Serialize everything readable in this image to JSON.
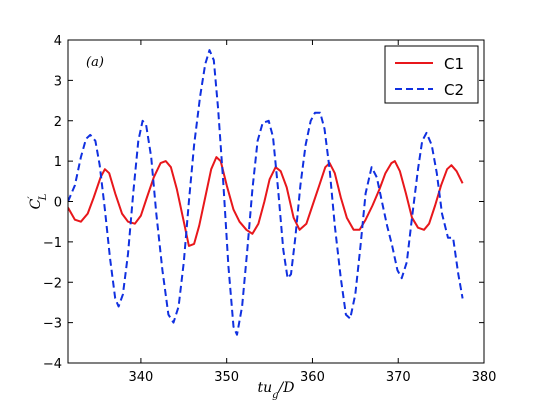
{
  "chart_data": {
    "type": "line",
    "panel_label": "(a)",
    "xlabel": "tu_g/D",
    "ylabel": "C'_L",
    "xlim": [
      331.5,
      380
    ],
    "ylim": [
      -4,
      4
    ],
    "x_ticks": [
      340,
      350,
      360,
      370,
      380
    ],
    "y_ticks": [
      -4,
      -3,
      -2,
      -1,
      0,
      1,
      2,
      3,
      4
    ],
    "legend_position": "top-right",
    "grid": false,
    "series": [
      {
        "name": "C1",
        "color": "#e8171b",
        "style": "solid",
        "points": [
          [
            331.5,
            -0.15
          ],
          [
            332.3,
            -0.45
          ],
          [
            333.0,
            -0.5
          ],
          [
            333.8,
            -0.3
          ],
          [
            334.5,
            0.1
          ],
          [
            335.3,
            0.6
          ],
          [
            335.8,
            0.8
          ],
          [
            336.3,
            0.7
          ],
          [
            337.0,
            0.2
          ],
          [
            337.8,
            -0.3
          ],
          [
            338.5,
            -0.5
          ],
          [
            339.3,
            -0.55
          ],
          [
            340.0,
            -0.35
          ],
          [
            340.7,
            0.1
          ],
          [
            341.5,
            0.6
          ],
          [
            342.3,
            0.95
          ],
          [
            342.9,
            1.0
          ],
          [
            343.5,
            0.85
          ],
          [
            344.2,
            0.3
          ],
          [
            345.0,
            -0.5
          ],
          [
            345.6,
            -1.1
          ],
          [
            346.2,
            -1.05
          ],
          [
            346.8,
            -0.6
          ],
          [
            347.5,
            0.1
          ],
          [
            348.2,
            0.8
          ],
          [
            348.8,
            1.1
          ],
          [
            349.3,
            1.0
          ],
          [
            350.0,
            0.4
          ],
          [
            350.8,
            -0.2
          ],
          [
            351.5,
            -0.5
          ],
          [
            352.3,
            -0.7
          ],
          [
            353.0,
            -0.8
          ],
          [
            353.7,
            -0.55
          ],
          [
            354.4,
            0.0
          ],
          [
            355.0,
            0.55
          ],
          [
            355.7,
            0.85
          ],
          [
            356.3,
            0.75
          ],
          [
            357.0,
            0.35
          ],
          [
            357.8,
            -0.4
          ],
          [
            358.5,
            -0.7
          ],
          [
            359.3,
            -0.55
          ],
          [
            360.0,
            -0.1
          ],
          [
            360.8,
            0.4
          ],
          [
            361.5,
            0.85
          ],
          [
            362.0,
            0.95
          ],
          [
            362.6,
            0.7
          ],
          [
            363.3,
            0.1
          ],
          [
            364.0,
            -0.4
          ],
          [
            364.8,
            -0.7
          ],
          [
            365.5,
            -0.7
          ],
          [
            366.2,
            -0.45
          ],
          [
            367.0,
            -0.1
          ],
          [
            367.8,
            0.3
          ],
          [
            368.5,
            0.7
          ],
          [
            369.2,
            0.95
          ],
          [
            369.6,
            1.0
          ],
          [
            370.2,
            0.75
          ],
          [
            370.9,
            0.2
          ],
          [
            371.6,
            -0.4
          ],
          [
            372.3,
            -0.65
          ],
          [
            373.0,
            -0.7
          ],
          [
            373.6,
            -0.55
          ],
          [
            374.3,
            -0.1
          ],
          [
            375.0,
            0.4
          ],
          [
            375.7,
            0.8
          ],
          [
            376.2,
            0.9
          ],
          [
            376.8,
            0.75
          ],
          [
            377.5,
            0.45
          ]
        ]
      },
      {
        "name": "C2",
        "color": "#1030e0",
        "style": "dashed",
        "points": [
          [
            331.5,
            0.0
          ],
          [
            332.3,
            0.4
          ],
          [
            333.0,
            1.1
          ],
          [
            333.6,
            1.55
          ],
          [
            334.1,
            1.65
          ],
          [
            334.7,
            1.5
          ],
          [
            335.2,
            0.9
          ],
          [
            335.8,
            -0.2
          ],
          [
            336.4,
            -1.4
          ],
          [
            337.0,
            -2.4
          ],
          [
            337.4,
            -2.6
          ],
          [
            337.9,
            -2.3
          ],
          [
            338.5,
            -1.3
          ],
          [
            339.1,
            0.2
          ],
          [
            339.7,
            1.5
          ],
          [
            340.2,
            2.0
          ],
          [
            340.6,
            1.9
          ],
          [
            341.2,
            1.1
          ],
          [
            341.8,
            -0.3
          ],
          [
            342.5,
            -1.7
          ],
          [
            343.2,
            -2.8
          ],
          [
            343.8,
            -3.0
          ],
          [
            344.4,
            -2.6
          ],
          [
            345.0,
            -1.5
          ],
          [
            345.6,
            0.0
          ],
          [
            346.2,
            1.4
          ],
          [
            346.9,
            2.6
          ],
          [
            347.5,
            3.4
          ],
          [
            348.0,
            3.75
          ],
          [
            348.5,
            3.5
          ],
          [
            349.0,
            2.3
          ],
          [
            349.6,
            0.5
          ],
          [
            350.2,
            -1.6
          ],
          [
            350.8,
            -3.1
          ],
          [
            351.2,
            -3.3
          ],
          [
            351.8,
            -2.6
          ],
          [
            352.4,
            -1.2
          ],
          [
            353.0,
            0.3
          ],
          [
            353.6,
            1.5
          ],
          [
            354.2,
            1.95
          ],
          [
            354.9,
            2.0
          ],
          [
            355.4,
            1.6
          ],
          [
            356.0,
            0.3
          ],
          [
            356.6,
            -1.2
          ],
          [
            357.1,
            -1.9
          ],
          [
            357.5,
            -1.8
          ],
          [
            358.0,
            -0.9
          ],
          [
            358.6,
            0.4
          ],
          [
            359.2,
            1.4
          ],
          [
            359.8,
            2.0
          ],
          [
            360.3,
            2.2
          ],
          [
            360.9,
            2.2
          ],
          [
            361.4,
            1.8
          ],
          [
            362.0,
            0.8
          ],
          [
            362.6,
            -0.6
          ],
          [
            363.3,
            -1.9
          ],
          [
            363.9,
            -2.8
          ],
          [
            364.4,
            -2.9
          ],
          [
            365.0,
            -2.3
          ],
          [
            365.6,
            -1.1
          ],
          [
            366.2,
            0.2
          ],
          [
            366.9,
            0.85
          ],
          [
            367.5,
            0.6
          ],
          [
            368.1,
            0.0
          ],
          [
            368.7,
            -0.6
          ],
          [
            369.3,
            -1.1
          ],
          [
            369.9,
            -1.7
          ],
          [
            370.4,
            -1.9
          ],
          [
            371.0,
            -1.5
          ],
          [
            371.6,
            -0.4
          ],
          [
            372.3,
            0.8
          ],
          [
            372.8,
            1.5
          ],
          [
            373.3,
            1.7
          ],
          [
            373.9,
            1.4
          ],
          [
            374.5,
            0.7
          ],
          [
            375.1,
            -0.3
          ],
          [
            375.8,
            -0.9
          ],
          [
            376.4,
            -0.9
          ],
          [
            377.0,
            -1.8
          ],
          [
            377.5,
            -2.4
          ]
        ]
      }
    ]
  }
}
